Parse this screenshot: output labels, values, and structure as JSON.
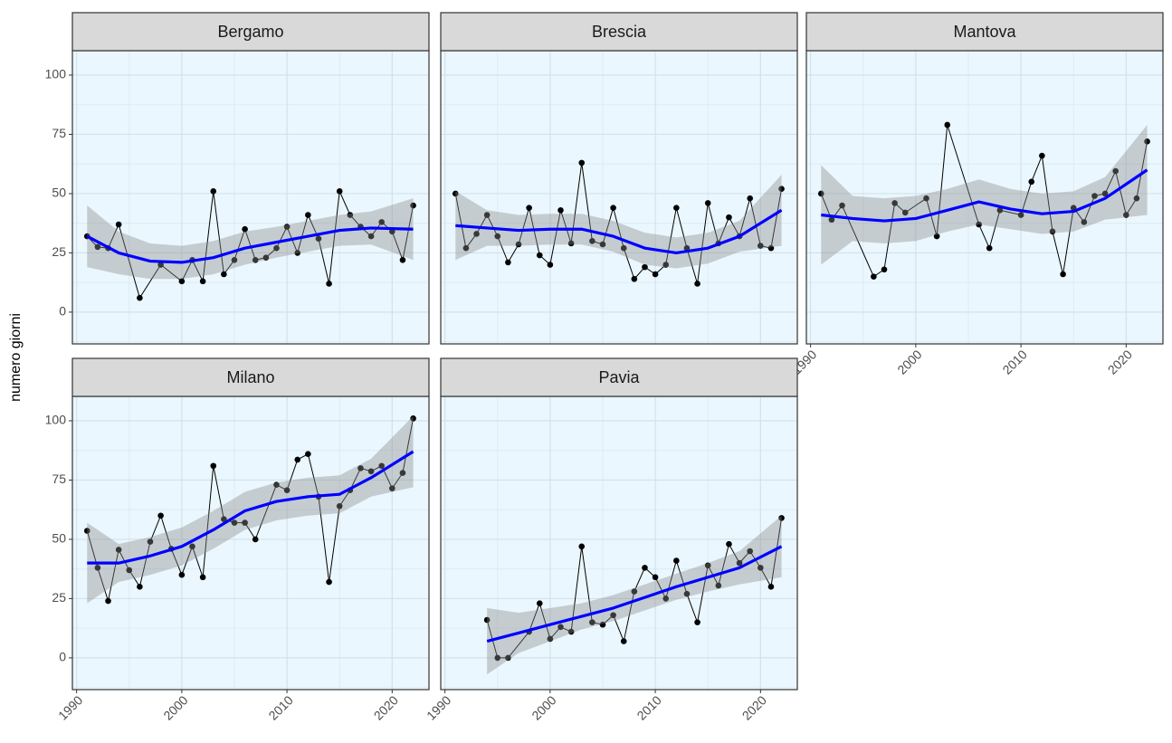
{
  "y_label": "numero giorni",
  "chart_data": [
    {
      "type": "line",
      "title": "Bergamo",
      "xlim": [
        1989.6,
        2023.5
      ],
      "ylim": [
        -13.4,
        110.3
      ],
      "xticks": [
        1990,
        2000,
        2010,
        2020
      ],
      "yticks": [
        0,
        25,
        50,
        75,
        100
      ],
      "grid": true,
      "color": "#000000",
      "x": [
        1991,
        1992,
        1993,
        1994,
        1996,
        1998,
        2000,
        2001,
        2002,
        2003,
        2004,
        2005,
        2006,
        2007,
        2008,
        2009,
        2010,
        2011,
        2012,
        2013,
        2014,
        2015,
        2016,
        2017,
        2018,
        2019,
        2020,
        2021,
        2022
      ],
      "values": [
        32,
        27.5,
        27,
        37,
        6,
        20,
        13,
        22,
        13,
        51,
        16,
        22,
        35,
        22,
        23,
        27,
        36,
        25,
        41,
        31,
        12,
        51,
        41,
        36,
        32,
        38,
        34,
        22,
        45
      ],
      "smooth": {
        "color": "#0000ff",
        "x": [
          1991,
          1994,
          1997,
          2000,
          2003,
          2006,
          2009,
          2012,
          2015,
          2018,
          2022
        ],
        "fit": [
          32,
          25,
          21.5,
          21,
          23,
          27,
          29.5,
          32,
          34.5,
          35.5,
          35
        ],
        "lower": [
          19,
          16,
          14,
          14,
          16,
          20,
          23,
          25.5,
          28,
          28.5,
          22
        ],
        "upper": [
          45,
          34,
          29,
          28,
          30,
          34,
          36,
          38.5,
          41,
          42.5,
          48
        ]
      }
    },
    {
      "type": "line",
      "title": "Brescia",
      "xlim": [
        1989.6,
        2023.5
      ],
      "ylim": [
        -13.4,
        110.3
      ],
      "xticks": [
        1990,
        2000,
        2010,
        2020
      ],
      "yticks": [
        0,
        25,
        50,
        75,
        100
      ],
      "grid": true,
      "color": "#000000",
      "x": [
        1991,
        1992,
        1993,
        1994,
        1995,
        1996,
        1997,
        1998,
        1999,
        2000,
        2001,
        2002,
        2003,
        2004,
        2005,
        2006,
        2007,
        2008,
        2009,
        2010,
        2011,
        2012,
        2013,
        2014,
        2015,
        2016,
        2017,
        2018,
        2019,
        2020,
        2021,
        2022
      ],
      "values": [
        50,
        27,
        33,
        41,
        32,
        21,
        28.6,
        44,
        24,
        20,
        43,
        29,
        63,
        30,
        28.6,
        44,
        27,
        14,
        19,
        16,
        20,
        44,
        27,
        12,
        46,
        29,
        40,
        32,
        48,
        28,
        27,
        52
      ],
      "smooth": {
        "color": "#0000ff",
        "x": [
          1991,
          1994,
          1997,
          2000,
          2003,
          2006,
          2009,
          2012,
          2015,
          2018,
          2022
        ],
        "fit": [
          36.5,
          35.5,
          34.5,
          35,
          35,
          32,
          27,
          25,
          27,
          32,
          43
        ],
        "lower": [
          22,
          28,
          28,
          28.5,
          28.5,
          25.5,
          20,
          18.5,
          20.5,
          25.5,
          28
        ],
        "upper": [
          51,
          43,
          41,
          41.5,
          41.5,
          38.5,
          33.5,
          31.5,
          33.5,
          38.5,
          58
        ]
      }
    },
    {
      "type": "line",
      "title": "Mantova",
      "xlim": [
        1989.6,
        2023.5
      ],
      "ylim": [
        -13.4,
        110.3
      ],
      "xticks": [
        1990,
        2000,
        2010,
        2020
      ],
      "yticks": [
        0,
        25,
        50,
        75,
        100
      ],
      "grid": true,
      "color": "#000000",
      "x": [
        1991,
        1992,
        1993,
        1996,
        1997,
        1998,
        1999,
        2001,
        2002,
        2003,
        2006,
        2007,
        2008,
        2010,
        2011,
        2012,
        2013,
        2014,
        2015,
        2016,
        2017,
        2018,
        2019,
        2020,
        2021,
        2022
      ],
      "values": [
        50,
        39,
        45,
        15,
        18,
        46,
        42,
        48,
        32,
        79,
        37,
        27,
        43,
        41,
        55,
        66,
        34,
        16,
        44,
        38,
        49,
        50,
        59.5,
        41,
        48,
        72
      ],
      "smooth": {
        "color": "#0000ff",
        "x": [
          1991,
          1994,
          1997,
          2000,
          2003,
          2006,
          2009,
          2012,
          2015,
          2018,
          2022
        ],
        "fit": [
          41,
          39.5,
          38.5,
          39.5,
          43,
          46.5,
          43.5,
          41.5,
          42.5,
          48,
          60
        ],
        "lower": [
          20,
          30,
          29,
          30,
          34,
          37,
          35,
          33,
          34,
          39,
          41
        ],
        "upper": [
          62,
          49,
          48,
          49,
          52,
          56,
          52,
          50,
          51,
          57,
          79
        ]
      }
    },
    {
      "type": "line",
      "title": "Milano",
      "xlim": [
        1989.6,
        2023.5
      ],
      "ylim": [
        -13.4,
        110.3
      ],
      "xticks": [
        1990,
        2000,
        2010,
        2020
      ],
      "yticks": [
        0,
        25,
        50,
        75,
        100
      ],
      "grid": true,
      "color": "#000000",
      "x": [
        1991,
        1992,
        1993,
        1994,
        1995,
        1996,
        1997,
        1998,
        1999,
        2000,
        2001,
        2002,
        2003,
        2004,
        2005,
        2006,
        2007,
        2009,
        2010,
        2011,
        2012,
        2013,
        2014,
        2015,
        2016,
        2017,
        2018,
        2019,
        2020,
        2021,
        2022
      ],
      "values": [
        53.6,
        38,
        24,
        45.6,
        37,
        30,
        49,
        60,
        46,
        35,
        47,
        34,
        81,
        58.5,
        57,
        57,
        50,
        73,
        70.7,
        83.6,
        86,
        68,
        32,
        64,
        70.7,
        80,
        78.7,
        81,
        71.5,
        78,
        101
      ],
      "smooth": {
        "color": "#0000ff",
        "x": [
          1991,
          1994,
          1997,
          2000,
          2003,
          2006,
          2009,
          2012,
          2015,
          2018,
          2022
        ],
        "fit": [
          40,
          40,
          43,
          47,
          54,
          62,
          66,
          68,
          69,
          76,
          87
        ],
        "lower": [
          23,
          32,
          35,
          39,
          46,
          54,
          58,
          60,
          61,
          68,
          72
        ],
        "upper": [
          57,
          48,
          51,
          55,
          62,
          70,
          74,
          76,
          77,
          84,
          102
        ]
      }
    },
    {
      "type": "line",
      "title": "Pavia",
      "xlim": [
        1989.6,
        2023.5
      ],
      "ylim": [
        -13.4,
        110.3
      ],
      "xticks": [
        1990,
        2000,
        2010,
        2020
      ],
      "yticks": [
        0,
        25,
        50,
        75,
        100
      ],
      "grid": true,
      "color": "#000000",
      "x": [
        1994,
        1995,
        1996,
        1998,
        1999,
        2000,
        2001,
        2002,
        2003,
        2004,
        2005,
        2006,
        2007,
        2008,
        2009,
        2010,
        2011,
        2012,
        2013,
        2014,
        2015,
        2016,
        2017,
        2018,
        2019,
        2020,
        2021,
        2022
      ],
      "values": [
        16,
        0,
        0,
        11,
        23,
        8,
        13,
        11,
        47,
        15,
        14,
        18,
        7,
        28,
        38,
        34,
        25,
        41,
        27,
        15,
        39,
        30.5,
        48,
        40,
        45,
        38,
        30,
        59
      ],
      "smooth": {
        "color": "#0000ff",
        "x": [
          1994,
          1997,
          2000,
          2003,
          2006,
          2009,
          2012,
          2015,
          2018,
          2022
        ],
        "fit": [
          7,
          10.5,
          14,
          17.5,
          21,
          25.5,
          30,
          34,
          38,
          47
        ],
        "lower": [
          -7,
          2,
          7,
          12,
          15.5,
          20,
          24.5,
          28,
          31,
          34
        ],
        "upper": [
          21,
          19,
          21,
          23,
          26.5,
          31,
          35.5,
          40,
          45,
          60
        ]
      }
    }
  ]
}
